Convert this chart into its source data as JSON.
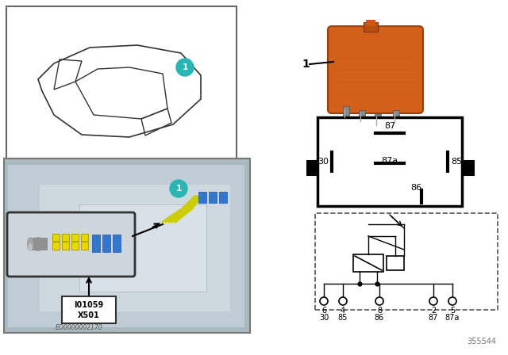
{
  "bg_color": "#ffffff",
  "teal_color": "#2ab5b5",
  "relay_color": "#d2601a",
  "photo_bg": "#b8c4cc",
  "callout_bg": "#d0d8e0",
  "schematic_pin_top": [
    "6",
    "4",
    "8",
    "2",
    "5"
  ],
  "schematic_pin_bot": [
    "30",
    "85",
    "86",
    "87",
    "87a"
  ],
  "io_label_line1": "I01059",
  "io_label_line2": "X501",
  "eo_label": "EO0000002170",
  "part_number": "355544",
  "relay_number": "1"
}
